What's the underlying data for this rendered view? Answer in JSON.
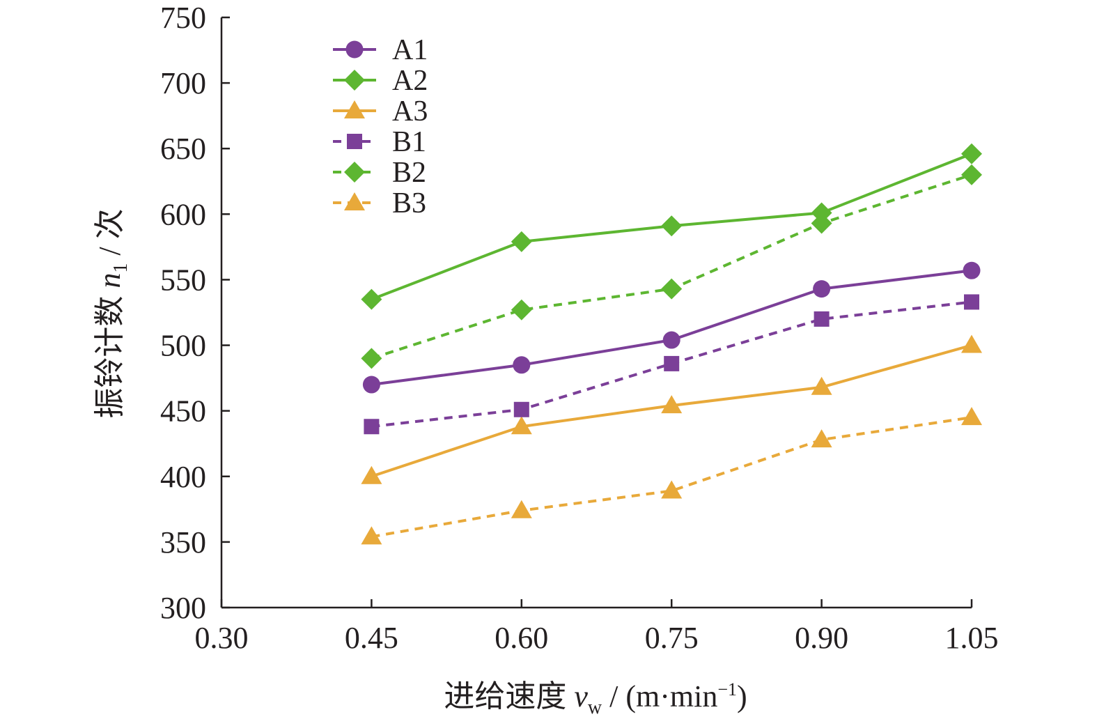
{
  "chart_data": {
    "type": "line",
    "xlabel": {
      "prefix": "进给速度 ",
      "symbol": "v",
      "subscript": "w",
      "unit_pre": " / (m·min",
      "unit_sup": "−1",
      "unit_post": ")"
    },
    "ylabel": {
      "prefix": "振铃计数 ",
      "symbol": "n",
      "subscript": "1",
      "unit": " / 次"
    },
    "xlim": [
      0.3,
      1.05
    ],
    "ylim": [
      300,
      750
    ],
    "x_ticks": [
      "0.30",
      "0.45",
      "0.60",
      "0.75",
      "0.90",
      "1.05"
    ],
    "y_ticks": [
      "300",
      "350",
      "400",
      "450",
      "500",
      "550",
      "600",
      "650",
      "700",
      "750"
    ],
    "x": [
      0.45,
      0.6,
      0.75,
      0.9,
      1.05
    ],
    "legend_position": "top-left",
    "grid": false,
    "series": [
      {
        "name": "A1",
        "color": "#7b3f98",
        "marker": "circle",
        "dashed": false,
        "values": [
          470,
          485,
          504,
          543,
          557
        ]
      },
      {
        "name": "A2",
        "color": "#5db631",
        "marker": "diamond",
        "dashed": false,
        "values": [
          535,
          579,
          591,
          601,
          646
        ]
      },
      {
        "name": "A3",
        "color": "#e8a93a",
        "marker": "triangle",
        "dashed": false,
        "values": [
          400,
          438,
          454,
          468,
          500
        ]
      },
      {
        "name": "B1",
        "color": "#7b3f98",
        "marker": "square",
        "dashed": true,
        "values": [
          438,
          451,
          486,
          520,
          533
        ]
      },
      {
        "name": "B2",
        "color": "#5db631",
        "marker": "diamond",
        "dashed": true,
        "values": [
          490,
          527,
          543,
          593,
          630
        ]
      },
      {
        "name": "B3",
        "color": "#e8a93a",
        "marker": "triangle",
        "dashed": true,
        "values": [
          354,
          374,
          389,
          428,
          445
        ]
      }
    ]
  }
}
